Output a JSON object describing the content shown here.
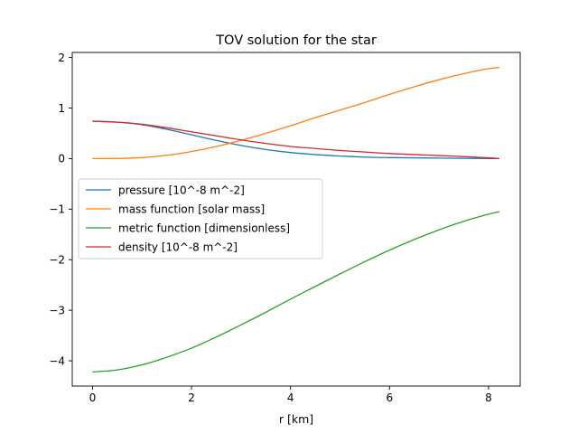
{
  "chart_data": {
    "type": "line",
    "title": "TOV solution for the star",
    "xlabel": "r [km]",
    "ylabel": "",
    "xlim": [
      -0.41,
      8.64
    ],
    "ylim": [
      -4.5,
      2.1
    ],
    "xticks": [
      0,
      2,
      4,
      6,
      8
    ],
    "xtick_labels": [
      "0",
      "2",
      "4",
      "6",
      "8"
    ],
    "yticks": [
      -4,
      -3,
      -2,
      -1,
      0,
      1,
      2
    ],
    "ytick_labels": [
      "−4",
      "−3",
      "−2",
      "−1",
      "0",
      "1",
      "2"
    ],
    "grid": false,
    "legend_position": "center-left",
    "series": [
      {
        "name": "pressure [10^-8 m^-2]",
        "color": "#1f77b4",
        "x": [
          0,
          0.5,
          1,
          1.5,
          2,
          2.5,
          3,
          3.5,
          4,
          4.5,
          5,
          5.5,
          6,
          6.5,
          7,
          7.5,
          8,
          8.22
        ],
        "y": [
          0.74,
          0.72,
          0.67,
          0.58,
          0.47,
          0.36,
          0.26,
          0.18,
          0.12,
          0.08,
          0.05,
          0.03,
          0.02,
          0.015,
          0.01,
          0.005,
          0.002,
          0.0
        ]
      },
      {
        "name": "mass function [solar mass]",
        "color": "#ff7f0e",
        "x": [
          0,
          0.5,
          1,
          1.5,
          2,
          2.5,
          3,
          3.5,
          4,
          4.5,
          5,
          5.5,
          6,
          6.5,
          7,
          7.5,
          8,
          8.22
        ],
        "y": [
          0.0,
          0.003,
          0.02,
          0.065,
          0.14,
          0.24,
          0.36,
          0.5,
          0.65,
          0.81,
          0.96,
          1.11,
          1.27,
          1.42,
          1.56,
          1.68,
          1.78,
          1.8
        ]
      },
      {
        "name": "metric function [dimensionless]",
        "color": "#2ca02c",
        "x": [
          0,
          0.5,
          1,
          1.5,
          2,
          2.5,
          3,
          3.5,
          4,
          4.5,
          5,
          5.5,
          6,
          6.5,
          7,
          7.5,
          8,
          8.22
        ],
        "y": [
          -4.22,
          -4.18,
          -4.08,
          -3.93,
          -3.75,
          -3.53,
          -3.29,
          -3.04,
          -2.78,
          -2.53,
          -2.28,
          -2.04,
          -1.81,
          -1.6,
          -1.41,
          -1.24,
          -1.1,
          -1.05
        ]
      },
      {
        "name": "density [10^-8 m^-2]",
        "color": "#d62728",
        "x": [
          0,
          0.5,
          1,
          1.5,
          2,
          2.5,
          3,
          3.5,
          4,
          4.5,
          5,
          5.5,
          6,
          6.5,
          7,
          7.5,
          8,
          8.22
        ],
        "y": [
          0.74,
          0.72,
          0.68,
          0.61,
          0.53,
          0.45,
          0.37,
          0.3,
          0.24,
          0.2,
          0.16,
          0.13,
          0.1,
          0.08,
          0.06,
          0.04,
          0.015,
          0.0
        ]
      }
    ]
  }
}
